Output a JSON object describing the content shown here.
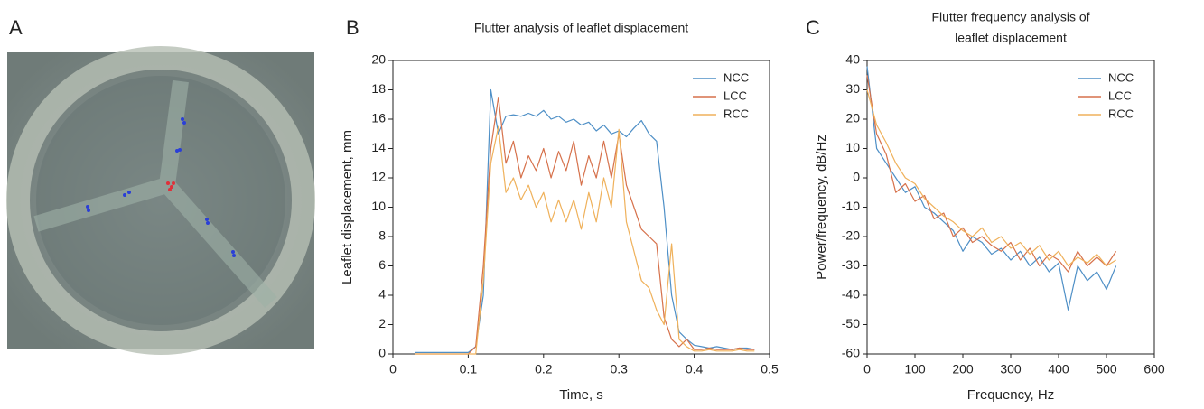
{
  "panel_labels": [
    "A",
    "B",
    "C"
  ],
  "chart_data": [
    {
      "type": "line",
      "title": [
        "Flutter analysis of leaflet displacement"
      ],
      "x_label": "Time, s",
      "y_label": "Leaflet displacement, mm",
      "x": [
        0.03,
        0.04,
        0.05,
        0.06,
        0.07,
        0.08,
        0.09,
        0.1,
        0.11,
        0.12,
        0.13,
        0.14,
        0.15,
        0.16,
        0.17,
        0.18,
        0.19,
        0.2,
        0.21,
        0.22,
        0.23,
        0.24,
        0.25,
        0.26,
        0.27,
        0.28,
        0.29,
        0.3,
        0.31,
        0.32,
        0.33,
        0.34,
        0.35,
        0.36,
        0.37,
        0.38,
        0.39,
        0.4,
        0.41,
        0.42,
        0.43,
        0.44,
        0.45,
        0.46,
        0.47,
        0.48
      ],
      "series": [
        {
          "name": "NCC",
          "color": "#4e8fc6",
          "values": [
            0.1,
            0.1,
            0.1,
            0.1,
            0.1,
            0.1,
            0.1,
            0.1,
            0.5,
            4,
            18,
            15,
            16.2,
            16.3,
            16.2,
            16.4,
            16.2,
            16.6,
            16,
            16.2,
            15.8,
            16,
            15.6,
            15.8,
            15.2,
            15.6,
            15,
            15.2,
            14.8,
            15.4,
            15.9,
            15,
            14.5,
            10,
            4,
            1.5,
            1,
            0.6,
            0.5,
            0.4,
            0.5,
            0.4,
            0.3,
            0.4,
            0.4,
            0.3
          ]
        },
        {
          "name": "LCC",
          "color": "#d6714b",
          "values": [
            0,
            0,
            0,
            0,
            0,
            0,
            0,
            0,
            0.5,
            6,
            14,
            17.5,
            13,
            14.5,
            12,
            13.5,
            12.5,
            14,
            12,
            13.8,
            12.5,
            14.5,
            11.5,
            13.5,
            12,
            14.5,
            12,
            15,
            11.5,
            10,
            8.5,
            8,
            7.5,
            2.5,
            1,
            0.5,
            1,
            0.3,
            0.3,
            0.4,
            0.3,
            0.3,
            0.3,
            0.4,
            0.3,
            0.3
          ]
        },
        {
          "name": "RCC",
          "color": "#efb15b",
          "values": [
            0,
            0,
            0,
            0,
            0,
            0,
            0,
            0,
            0,
            5,
            13,
            15.5,
            11,
            12,
            10.5,
            11.5,
            10,
            11,
            9,
            10.5,
            9,
            10.5,
            8.5,
            11,
            9,
            12,
            10,
            15.3,
            9,
            7,
            5,
            4.5,
            3,
            2,
            7.5,
            1,
            0.5,
            0.2,
            0.2,
            0.3,
            0.2,
            0.2,
            0.2,
            0.3,
            0.2,
            0.2
          ]
        }
      ],
      "xlim": [
        0,
        0.5
      ],
      "xticks": [
        0,
        0.1,
        0.2,
        0.3,
        0.4,
        0.5
      ],
      "ylim": [
        0,
        20
      ],
      "yticks": [
        0,
        2,
        4,
        6,
        8,
        10,
        12,
        14,
        16,
        18,
        20
      ],
      "legend": "upper right",
      "grid": false
    },
    {
      "type": "line",
      "title": [
        "Flutter frequency analysis of",
        "leaflet displacement"
      ],
      "x_label": "Frequency, Hz",
      "y_label": "Power/frequency, dB/Hz",
      "x": [
        0,
        20,
        40,
        60,
        80,
        100,
        120,
        140,
        160,
        180,
        200,
        220,
        240,
        260,
        280,
        300,
        320,
        340,
        360,
        380,
        400,
        420,
        440,
        460,
        480,
        500,
        520
      ],
      "series": [
        {
          "name": "NCC",
          "color": "#4e8fc6",
          "values": [
            38,
            10,
            5,
            0,
            -5,
            -3,
            -10,
            -12,
            -15,
            -18,
            -25,
            -20,
            -22,
            -26,
            -24,
            -28,
            -25,
            -30,
            -27,
            -32,
            -29,
            -45,
            -30,
            -35,
            -32,
            -38,
            -30
          ]
        },
        {
          "name": "LCC",
          "color": "#d6714b",
          "values": [
            35,
            15,
            8,
            -5,
            -2,
            -8,
            -6,
            -14,
            -12,
            -20,
            -17,
            -22,
            -20,
            -23,
            -25,
            -22,
            -28,
            -24,
            -30,
            -26,
            -28,
            -32,
            -25,
            -30,
            -27,
            -30,
            -25
          ]
        },
        {
          "name": "RCC",
          "color": "#efb15b",
          "values": [
            30,
            18,
            12,
            5,
            0,
            -2,
            -7,
            -10,
            -13,
            -15,
            -18,
            -20,
            -17,
            -22,
            -20,
            -24,
            -22,
            -26,
            -23,
            -28,
            -25,
            -30,
            -27,
            -29,
            -26,
            -30,
            -28
          ]
        }
      ],
      "xlim": [
        0,
        600
      ],
      "xticks": [
        0,
        100,
        200,
        300,
        400,
        500,
        600
      ],
      "ylim": [
        -60,
        40
      ],
      "yticks": [
        -60,
        -50,
        -40,
        -30,
        -20,
        -10,
        0,
        10,
        20,
        30,
        40
      ],
      "legend": "upper right",
      "grid": false
    }
  ]
}
